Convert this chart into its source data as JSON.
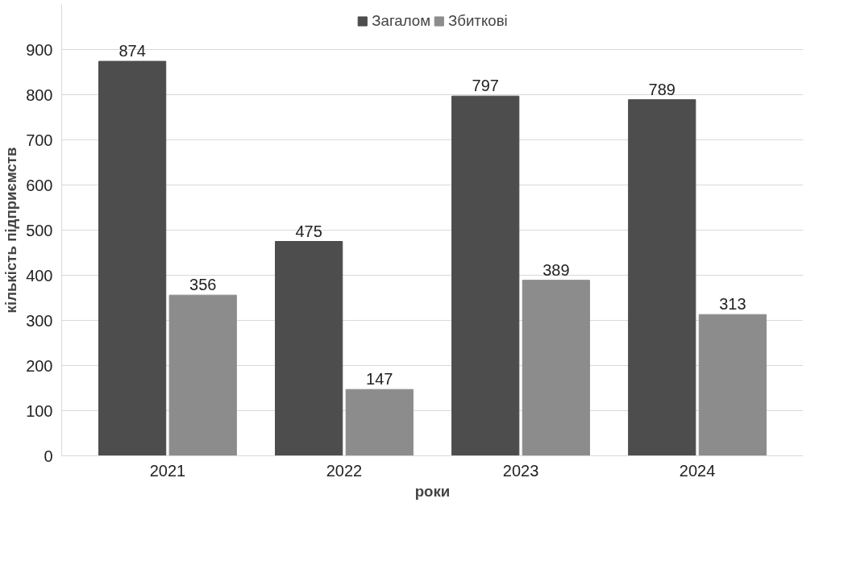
{
  "chart_data": {
    "type": "bar",
    "xlabel": "роки",
    "ylabel": "кількість підприємств",
    "categories": [
      "2021",
      "2022",
      "2023",
      "2024"
    ],
    "series": [
      {
        "name": "Загалом",
        "color": "#4d4d4d",
        "values": [
          874,
          475,
          797,
          789
        ]
      },
      {
        "name": "Збиткові",
        "color": "#8c8c8c",
        "values": [
          356,
          147,
          389,
          313
        ]
      }
    ],
    "ylim": [
      0,
      1000
    ],
    "yticks": [
      0,
      100,
      200,
      300,
      400,
      500,
      600,
      700,
      800,
      900
    ],
    "grid": "y",
    "legend": "top",
    "data_labels": true
  }
}
